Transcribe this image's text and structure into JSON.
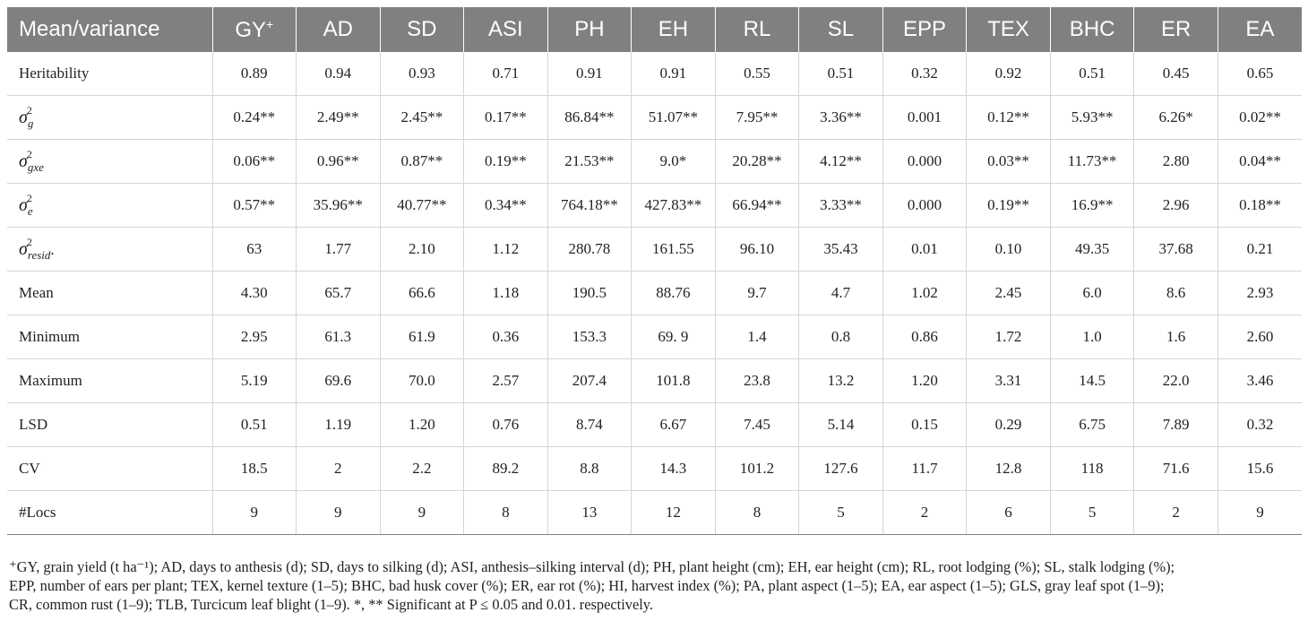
{
  "table": {
    "corner_label": "Mean/variance",
    "columns": [
      {
        "label": "GY",
        "sup": "+"
      },
      {
        "label": "AD"
      },
      {
        "label": "SD"
      },
      {
        "label": "ASI"
      },
      {
        "label": "PH"
      },
      {
        "label": "EH"
      },
      {
        "label": "RL"
      },
      {
        "label": "SL"
      },
      {
        "label": "EPP"
      },
      {
        "label": "TEX"
      },
      {
        "label": "BHC"
      },
      {
        "label": "ER"
      },
      {
        "label": "EA"
      }
    ],
    "rows": [
      {
        "label": "Heritability",
        "values": [
          "0.89",
          "0.94",
          "0.93",
          "0.71",
          "0.91",
          "0.91",
          "0.55",
          "0.51",
          "0.32",
          "0.92",
          "0.51",
          "0.45",
          "0.65"
        ]
      },
      {
        "symbol": {
          "base": "σ",
          "power": "2",
          "sub": "g",
          "suffix": ""
        },
        "values": [
          "0.24**",
          "2.49**",
          "2.45**",
          "0.17**",
          "86.84**",
          "51.07**",
          "7.95**",
          "3.36**",
          "0.001",
          "0.12**",
          "5.93**",
          "6.26*",
          "0.02**"
        ]
      },
      {
        "symbol": {
          "base": "σ",
          "power": "2",
          "sub": "gxe",
          "suffix": ""
        },
        "values": [
          "0.06**",
          "0.96**",
          "0.87**",
          "0.19**",
          "21.53**",
          "9.0*",
          "20.28**",
          "4.12**",
          "0.000",
          "0.03**",
          "11.73**",
          "2.80",
          "0.04**"
        ]
      },
      {
        "symbol": {
          "base": "σ",
          "power": "2",
          "sub": "e",
          "suffix": ""
        },
        "values": [
          "0.57**",
          "35.96**",
          "40.77**",
          "0.34**",
          "764.18**",
          "427.83**",
          "66.94**",
          "3.33**",
          "0.000",
          "0.19**",
          "16.9**",
          "2.96",
          "0.18**"
        ]
      },
      {
        "symbol": {
          "base": "σ",
          "power": "2",
          "sub": "resid",
          "suffix": "."
        },
        "values": [
          "63",
          "1.77",
          "2.10",
          "1.12",
          "280.78",
          "161.55",
          "96.10",
          "35.43",
          "0.01",
          "0.10",
          "49.35",
          "37.68",
          "0.21"
        ]
      },
      {
        "label": "Mean",
        "values": [
          "4.30",
          "65.7",
          "66.6",
          "1.18",
          "190.5",
          "88.76",
          "9.7",
          "4.7",
          "1.02",
          "2.45",
          "6.0",
          "8.6",
          "2.93"
        ]
      },
      {
        "label": "Minimum",
        "values": [
          "2.95",
          "61.3",
          "61.9",
          "0.36",
          "153.3",
          "69. 9",
          "1.4",
          "0.8",
          "0.86",
          "1.72",
          "1.0",
          "1.6",
          "2.60"
        ]
      },
      {
        "label": "Maximum",
        "values": [
          "5.19",
          "69.6",
          "70.0",
          "2.57",
          "207.4",
          "101.8",
          "23.8",
          "13.2",
          "1.20",
          "3.31",
          "14.5",
          "22.0",
          "3.46"
        ]
      },
      {
        "label": "LSD",
        "values": [
          "0.51",
          "1.19",
          "1.20",
          "0.76",
          "8.74",
          "6.67",
          "7.45",
          "5.14",
          "0.15",
          "0.29",
          "6.75",
          "7.89",
          "0.32"
        ]
      },
      {
        "label": "CV",
        "values": [
          "18.5",
          "2",
          "2.2",
          "89.2",
          "8.8",
          "14.3",
          "101.2",
          "127.6",
          "11.7",
          "12.8",
          "118",
          "71.6",
          "15.6"
        ]
      },
      {
        "label": "#Locs",
        "values": [
          "9",
          "9",
          "9",
          "8",
          "13",
          "12",
          "8",
          "5",
          "2",
          "6",
          "5",
          "2",
          "9"
        ]
      }
    ]
  },
  "footnote": {
    "lines": [
      "⁺GY, grain yield (t ha⁻¹); AD, days to anthesis (d); SD, days to silking (d); ASI, anthesis–silking interval (d); PH, plant height (cm); EH, ear height (cm); RL, root lodging (%); SL, stalk lodging (%);",
      "EPP, number of ears per plant; TEX, kernel texture (1–5); BHC, bad husk cover (%); ER, ear rot (%); HI, harvest index (%); PA, plant aspect (1–5); EA, ear aspect (1–5); GLS, gray leaf spot (1–9);",
      "CR, common rust (1–9); TLB, Turcicum leaf blight (1–9). *, ** Significant at P ≤ 0.05 and 0.01. respectively."
    ]
  }
}
